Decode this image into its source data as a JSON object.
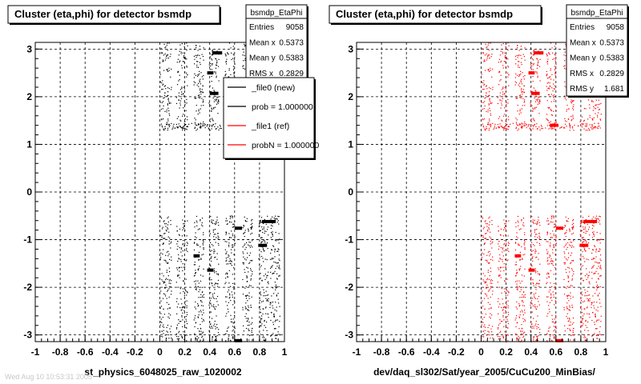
{
  "chart_data": [
    {
      "type": "scatter",
      "title": "Cluster (eta,phi) for detector bsmdp",
      "xlabel": "st_physics_6048025_raw_1020002",
      "ylabel": "",
      "xlim": [
        -1,
        1
      ],
      "ylim": [
        -3.14,
        3.14
      ],
      "x_ticks": [
        "-1",
        "-0.8",
        "-0.6",
        "-0.4",
        "-0.2",
        "0",
        "0.2",
        "0.4",
        "0.6",
        "0.8",
        "1"
      ],
      "y_ticks": [
        "-3",
        "-2",
        "-1",
        "0",
        "1",
        "2",
        "3"
      ],
      "grid": true,
      "marker_color": "#000000",
      "stats": {
        "name": "bsmdp_EtaPhi",
        "rows": [
          {
            "label": "Entries",
            "value": "9058"
          },
          {
            "label": "Mean x",
            "value": "0.5373"
          },
          {
            "label": "Mean y",
            "value": "0.5383"
          },
          {
            "label": "RMS x",
            "value": "0.2829"
          }
        ]
      },
      "legend": {
        "placement": "right",
        "entries": [
          {
            "label": "_file0 (new)",
            "color": "#000000"
          },
          {
            "label": "prob = 1.000000",
            "color": "#000000"
          },
          {
            "label": "_file1 (ref)",
            "color": "#ff0000"
          },
          {
            "label": "probN = 1.000000",
            "color": "#ff0000"
          }
        ]
      }
    },
    {
      "type": "scatter",
      "title": "Cluster (eta,phi) for detector bsmdp",
      "xlabel": "dev/daq_sl302/Sat/year_2005/CuCu200_MinBias/",
      "ylabel": "",
      "xlim": [
        -1,
        1
      ],
      "ylim": [
        -3.14,
        3.14
      ],
      "x_ticks": [
        "-1",
        "-0.8",
        "-0.6",
        "-0.4",
        "-0.2",
        "0",
        "0.2",
        "0.4",
        "0.6",
        "0.8",
        "1"
      ],
      "y_ticks": [
        "-3",
        "-2",
        "-1",
        "0",
        "1",
        "2",
        "3"
      ],
      "grid": true,
      "marker_color": "#ff0000",
      "stats": {
        "name": "bsmdp_EtaPhi",
        "rows": [
          {
            "label": "Entries",
            "value": "9058"
          },
          {
            "label": "Mean x",
            "value": "0.5373"
          },
          {
            "label": "Mean y",
            "value": "0.5383"
          },
          {
            "label": "RMS x",
            "value": "0.2829"
          },
          {
            "label": "RMS y",
            "value": "1.681"
          }
        ]
      }
    }
  ],
  "footer_text": "Wed Aug 10 10:53:31 2005"
}
